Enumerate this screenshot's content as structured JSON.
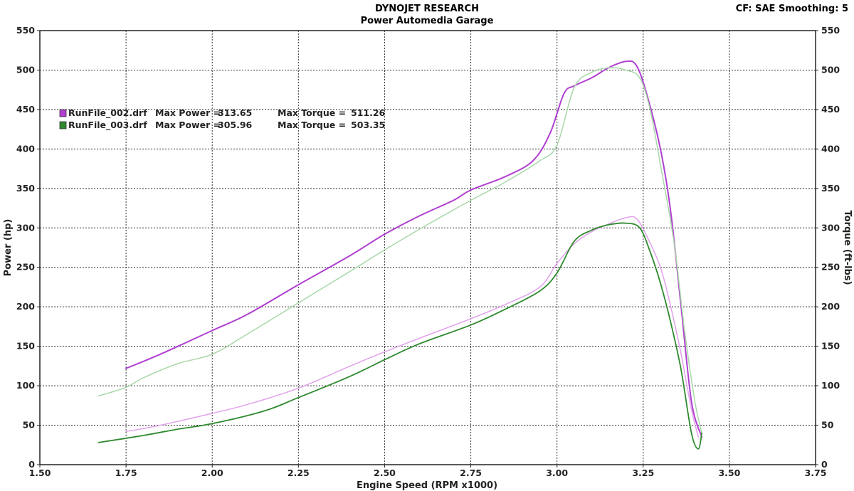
{
  "header": {
    "title": "DYNOJET RESEARCH",
    "subtitle": "Power Automedia Garage",
    "right_info": "CF: SAE  Smoothing: 5"
  },
  "chart_data": {
    "type": "line",
    "title": "DYNOJET RESEARCH",
    "subtitle": "Power Automedia Garage",
    "xlabel": "Engine Speed (RPM x1000)",
    "ylabel_left": "Power (hp)",
    "ylabel_right": "Torque (ft-lbs)",
    "xlim": [
      1.5,
      3.75
    ],
    "ylim": [
      0,
      550
    ],
    "x_ticks": [
      "1.50",
      "1.75",
      "2.00",
      "2.25",
      "2.50",
      "2.75",
      "3.00",
      "3.25",
      "3.50",
      "3.75"
    ],
    "y_ticks": [
      "0",
      "50",
      "100",
      "150",
      "200",
      "250",
      "300",
      "350",
      "400",
      "450",
      "500",
      "550"
    ],
    "grid": true,
    "legend_position": "top-left",
    "legend": [
      {
        "file": "RunFile_002.drf",
        "max_power_label": "Max Power =",
        "max_power": "313.65",
        "max_torque_label": "Max Torque =",
        "max_torque": "511.26",
        "color": "#b040d0"
      },
      {
        "file": "RunFile_003.drf",
        "max_power_label": "Max Power =",
        "max_power": "305.96",
        "max_torque_label": "Max Torque =",
        "max_torque": "503.35",
        "color": "#2e8a2e"
      }
    ],
    "series": [
      {
        "name": "RunFile_002.drf",
        "quantity": "Torque",
        "color": "#b040d0",
        "width": 2,
        "points": [
          [
            1.75,
            122
          ],
          [
            1.85,
            140
          ],
          [
            2.0,
            170
          ],
          [
            2.1,
            190
          ],
          [
            2.25,
            228
          ],
          [
            2.4,
            265
          ],
          [
            2.5,
            292
          ],
          [
            2.6,
            315
          ],
          [
            2.7,
            335
          ],
          [
            2.75,
            348
          ],
          [
            2.85,
            365
          ],
          [
            2.93,
            385
          ],
          [
            2.98,
            420
          ],
          [
            3.02,
            470
          ],
          [
            3.05,
            480
          ],
          [
            3.1,
            490
          ],
          [
            3.15,
            503
          ],
          [
            3.2,
            511
          ],
          [
            3.23,
            506
          ],
          [
            3.26,
            470
          ],
          [
            3.3,
            400
          ],
          [
            3.33,
            320
          ],
          [
            3.36,
            200
          ],
          [
            3.39,
            80
          ],
          [
            3.42,
            35
          ]
        ]
      },
      {
        "name": "RunFile_003.drf",
        "quantity": "Torque",
        "color": "#a8d8a8",
        "width": 1.5,
        "points": [
          [
            1.67,
            87
          ],
          [
            1.75,
            98
          ],
          [
            1.8,
            110
          ],
          [
            1.9,
            128
          ],
          [
            2.0,
            140
          ],
          [
            2.1,
            165
          ],
          [
            2.25,
            205
          ],
          [
            2.4,
            245
          ],
          [
            2.5,
            272
          ],
          [
            2.6,
            298
          ],
          [
            2.75,
            335
          ],
          [
            2.85,
            358
          ],
          [
            2.95,
            385
          ],
          [
            3.0,
            405
          ],
          [
            3.05,
            478
          ],
          [
            3.1,
            497
          ],
          [
            3.15,
            503
          ],
          [
            3.2,
            500
          ],
          [
            3.24,
            490
          ],
          [
            3.27,
            450
          ],
          [
            3.3,
            380
          ],
          [
            3.34,
            280
          ],
          [
            3.37,
            170
          ],
          [
            3.4,
            80
          ],
          [
            3.42,
            40
          ]
        ]
      },
      {
        "name": "RunFile_002.drf",
        "quantity": "Power",
        "color": "#e2a2ec",
        "width": 1.5,
        "points": [
          [
            1.75,
            42
          ],
          [
            1.85,
            50
          ],
          [
            2.0,
            65
          ],
          [
            2.1,
            76
          ],
          [
            2.25,
            97
          ],
          [
            2.4,
            125
          ],
          [
            2.5,
            143
          ],
          [
            2.6,
            160
          ],
          [
            2.75,
            185
          ],
          [
            2.85,
            203
          ],
          [
            2.95,
            225
          ],
          [
            3.0,
            255
          ],
          [
            3.05,
            280
          ],
          [
            3.1,
            295
          ],
          [
            3.15,
            305
          ],
          [
            3.2,
            313
          ],
          [
            3.23,
            312
          ],
          [
            3.26,
            290
          ],
          [
            3.3,
            250
          ],
          [
            3.33,
            200
          ],
          [
            3.36,
            140
          ],
          [
            3.39,
            70
          ],
          [
            3.41,
            35
          ]
        ]
      },
      {
        "name": "RunFile_003.drf",
        "quantity": "Power",
        "color": "#2e8a2e",
        "width": 1.8,
        "points": [
          [
            1.67,
            28
          ],
          [
            1.8,
            37
          ],
          [
            1.9,
            45
          ],
          [
            2.0,
            52
          ],
          [
            2.15,
            68
          ],
          [
            2.25,
            85
          ],
          [
            2.4,
            112
          ],
          [
            2.5,
            133
          ],
          [
            2.6,
            153
          ],
          [
            2.75,
            177
          ],
          [
            2.85,
            197
          ],
          [
            2.95,
            220
          ],
          [
            3.0,
            243
          ],
          [
            3.05,
            283
          ],
          [
            3.1,
            297
          ],
          [
            3.15,
            304
          ],
          [
            3.2,
            306
          ],
          [
            3.24,
            300
          ],
          [
            3.27,
            270
          ],
          [
            3.3,
            230
          ],
          [
            3.33,
            180
          ],
          [
            3.36,
            120
          ],
          [
            3.39,
            40
          ],
          [
            3.41,
            20
          ],
          [
            3.42,
            40
          ]
        ]
      }
    ]
  }
}
